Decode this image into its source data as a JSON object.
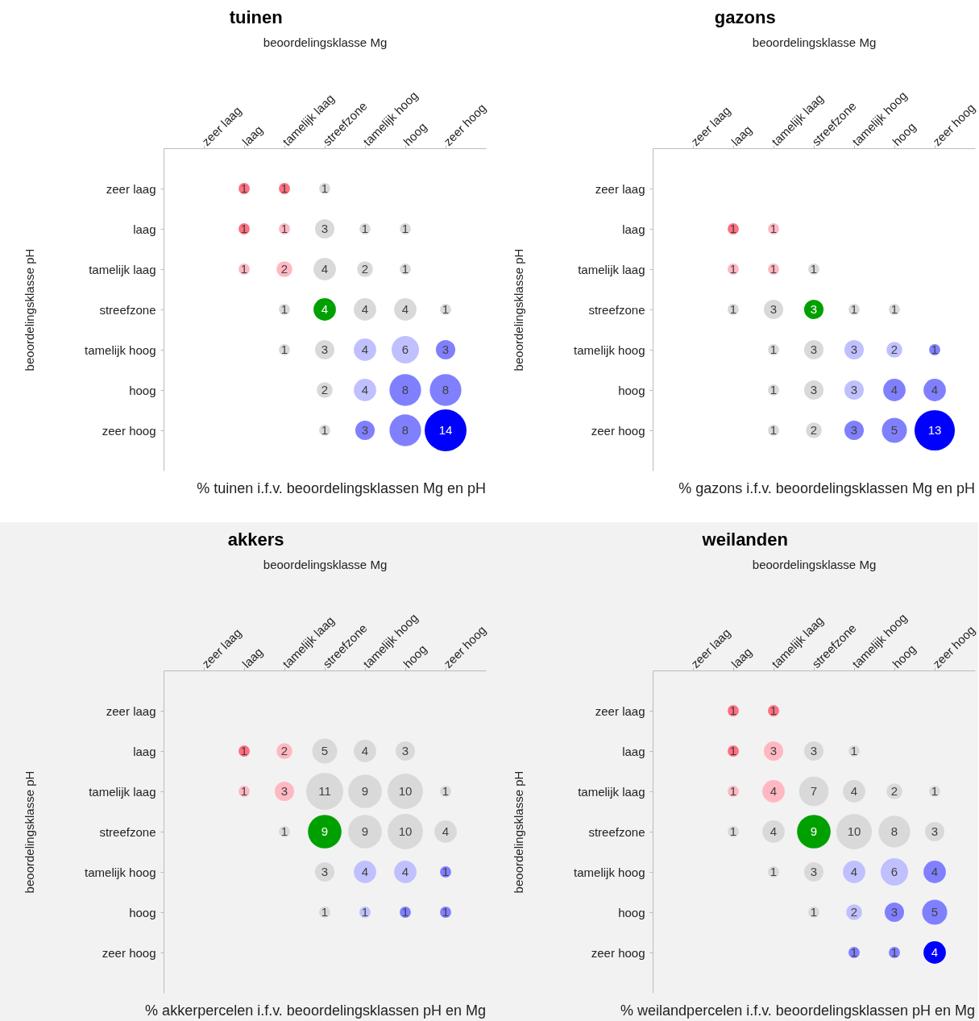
{
  "chart_data": [
    {
      "type": "heatmap",
      "title": "tuinen",
      "xlabel": "beoordelingsklasse Mg",
      "ylabel": "beoordelingsklasse pH",
      "categories": [
        "zeer laag",
        "laag",
        "tamelijk laag",
        "streefzone",
        "tamelijk hoog",
        "hoog",
        "zeer hoog"
      ],
      "y_categories": [
        "zeer laag",
        "laag",
        "tamelijk laag",
        "streefzone",
        "tamelijk hoog",
        "hoog",
        "zeer hoog"
      ],
      "cells": [
        [
          null,
          1,
          1,
          1,
          null,
          null,
          null
        ],
        [
          null,
          1,
          1,
          3,
          1,
          1,
          null
        ],
        [
          null,
          1,
          2,
          4,
          2,
          1,
          null
        ],
        [
          null,
          null,
          1,
          4,
          4,
          4,
          1
        ],
        [
          null,
          null,
          1,
          3,
          4,
          6,
          3
        ],
        [
          null,
          null,
          null,
          2,
          4,
          8,
          8
        ],
        [
          null,
          null,
          null,
          1,
          3,
          8,
          14
        ]
      ],
      "annotations": [
        "% tuinen i.f.v. beoordelingsklassen  Mg en pH"
      ],
      "data_labels": true
    },
    {
      "type": "heatmap",
      "title": "gazons",
      "xlabel": "beoordelingsklasse Mg",
      "ylabel": "beoordelingsklasse pH",
      "categories": [
        "zeer laag",
        "laag",
        "tamelijk laag",
        "streefzone",
        "tamelijk hoog",
        "hoog",
        "zeer hoog"
      ],
      "y_categories": [
        "zeer laag",
        "laag",
        "tamelijk laag",
        "streefzone",
        "tamelijk hoog",
        "hoog",
        "zeer hoog"
      ],
      "cells": [
        [
          null,
          null,
          null,
          null,
          null,
          null,
          null
        ],
        [
          null,
          1,
          1,
          null,
          null,
          null,
          null
        ],
        [
          null,
          1,
          1,
          1,
          null,
          null,
          null
        ],
        [
          null,
          1,
          3,
          3,
          1,
          1,
          null
        ],
        [
          null,
          null,
          1,
          3,
          3,
          2,
          1
        ],
        [
          null,
          null,
          1,
          3,
          3,
          4,
          4
        ],
        [
          null,
          null,
          1,
          2,
          3,
          5,
          13
        ]
      ],
      "annotations": [
        "% gazons i.f.v. beoordelingsklassen  Mg en pH"
      ],
      "data_labels": true
    },
    {
      "type": "heatmap",
      "title": "akkers",
      "xlabel": "beoordelingsklasse Mg",
      "ylabel": "beoordelingsklasse pH",
      "categories": [
        "zeer laag",
        "laag",
        "tamelijk laag",
        "streefzone",
        "tamelijk hoog",
        "hoog",
        "zeer hoog"
      ],
      "y_categories": [
        "zeer laag",
        "laag",
        "tamelijk laag",
        "streefzone",
        "tamelijk hoog",
        "hoog",
        "zeer hoog"
      ],
      "cells": [
        [
          null,
          null,
          null,
          null,
          null,
          null,
          null
        ],
        [
          null,
          1,
          2,
          5,
          4,
          3,
          null
        ],
        [
          null,
          1,
          3,
          11,
          9,
          10,
          1
        ],
        [
          null,
          null,
          1,
          9,
          9,
          10,
          4
        ],
        [
          null,
          null,
          null,
          3,
          4,
          4,
          1
        ],
        [
          null,
          null,
          null,
          1,
          1,
          1,
          1
        ],
        [
          null,
          null,
          null,
          null,
          null,
          null,
          null
        ]
      ],
      "annotations": [
        "% akkerpercelen i.f.v. beoordelingsklassen  pH en Mg"
      ],
      "data_labels": true
    },
    {
      "type": "heatmap",
      "title": "weilanden",
      "xlabel": "beoordelingsklasse Mg",
      "ylabel": "beoordelingsklasse pH",
      "categories": [
        "zeer laag",
        "laag",
        "tamelijk laag",
        "streefzone",
        "tamelijk hoog",
        "hoog",
        "zeer hoog"
      ],
      "y_categories": [
        "zeer laag",
        "laag",
        "tamelijk laag",
        "streefzone",
        "tamelijk hoog",
        "hoog",
        "zeer hoog"
      ],
      "cells": [
        [
          null,
          1,
          1,
          null,
          null,
          null,
          null
        ],
        [
          null,
          1,
          3,
          3,
          1,
          null,
          null
        ],
        [
          null,
          1,
          4,
          7,
          4,
          2,
          1
        ],
        [
          null,
          1,
          4,
          9,
          10,
          8,
          3
        ],
        [
          null,
          null,
          1,
          3,
          4,
          6,
          4
        ],
        [
          null,
          null,
          null,
          1,
          2,
          3,
          5
        ],
        [
          null,
          null,
          null,
          null,
          1,
          1,
          4
        ]
      ],
      "annotations": [
        "% weilandpercelen i.f.v. beoordelingsklassen  pH en Mg"
      ],
      "data_labels": true
    }
  ]
}
